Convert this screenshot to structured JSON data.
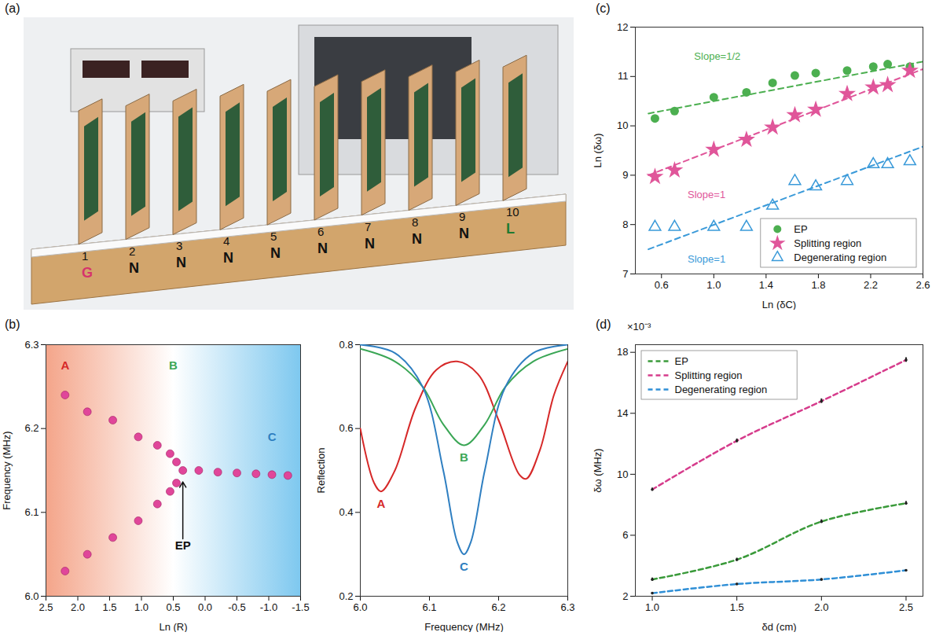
{
  "chart_data": [
    {
      "panel": "(a)",
      "type": "diagram",
      "boards": [
        {
          "number": "1",
          "label": "G",
          "color": "#d6336c"
        },
        {
          "number": "2",
          "label": "N",
          "color": "#111111"
        },
        {
          "number": "3",
          "label": "N",
          "color": "#111111"
        },
        {
          "number": "4",
          "label": "N",
          "color": "#111111"
        },
        {
          "number": "5",
          "label": "N",
          "color": "#111111"
        },
        {
          "number": "6",
          "label": "N",
          "color": "#111111"
        },
        {
          "number": "7",
          "label": "N",
          "color": "#111111"
        },
        {
          "number": "8",
          "label": "N",
          "color": "#111111"
        },
        {
          "number": "9",
          "label": "N",
          "color": "#111111"
        },
        {
          "number": "10",
          "label": "L",
          "color": "#1f7a30"
        }
      ]
    },
    {
      "panel": "(b)",
      "type": "scatter",
      "x_label": "Ln (R)",
      "y_label": "Frequency (MHz)",
      "xlim": [
        2.5,
        -1.5
      ],
      "xticks": [
        2.5,
        {
          "value": 2,
          "label": "2.0"
        },
        1.5,
        {
          "value": 1,
          "label": "1.0"
        },
        0.5,
        {
          "value": 0,
          "label": "0.0"
        },
        -0.5,
        {
          "value": -1,
          "label": "-1.0"
        },
        -1.5
      ],
      "ylim": [
        6.0,
        6.3
      ],
      "yticks": [
        {
          "value": 6,
          "label": "6.0"
        },
        6.1,
        6.2,
        6.3
      ],
      "color": "#e0469a",
      "x": [
        2.2,
        2.2,
        1.85,
        1.85,
        1.45,
        1.45,
        1.05,
        1.05,
        0.75,
        0.75,
        0.55,
        0.55,
        0.45,
        0.45,
        0.35,
        0.1,
        -0.2,
        -0.5,
        -0.8,
        -1.05,
        -1.3
      ],
      "y": [
        6.03,
        6.24,
        6.05,
        6.22,
        6.07,
        6.21,
        6.09,
        6.19,
        6.11,
        6.18,
        6.125,
        6.17,
        6.135,
        6.16,
        6.15,
        6.15,
        6.148,
        6.147,
        6.146,
        6.145,
        6.144
      ],
      "annotations": [
        {
          "text": "A",
          "x": 2.2,
          "y": 6.275,
          "color": "#d62828"
        },
        {
          "text": "B",
          "x": 0.5,
          "y": 6.275,
          "color": "#3aa655"
        },
        {
          "text": "C",
          "x": -1.05,
          "y": 6.19,
          "color": "#2f7fc1"
        },
        {
          "text": "EP",
          "x": 0.35,
          "y": 6.06,
          "color": "#111111",
          "arrow_to": [
            0.35,
            6.142
          ]
        }
      ]
    },
    {
      "type": "line",
      "x_label": "Frequency (MHz)",
      "y_label": "Reflection",
      "xlim": [
        6.0,
        6.3
      ],
      "xticks": [
        {
          "value": 6,
          "label": "6.0"
        },
        6.1,
        6.2,
        6.3
      ],
      "ylim": [
        0.2,
        0.8
      ],
      "yticks": [
        0.2,
        0.4,
        0.6,
        0.8
      ],
      "series": [
        {
          "name": "A",
          "color": "#d62828",
          "x": [
            6.0,
            6.02,
            6.03,
            6.05,
            6.08,
            6.11,
            6.14,
            6.17,
            6.2,
            6.23,
            6.24,
            6.26,
            6.28,
            6.3
          ],
          "values": [
            0.6,
            0.47,
            0.45,
            0.5,
            0.65,
            0.74,
            0.76,
            0.73,
            0.62,
            0.49,
            0.48,
            0.55,
            0.68,
            0.76
          ]
        },
        {
          "name": "B",
          "color": "#3aa655",
          "x": [
            6.0,
            6.05,
            6.09,
            6.12,
            6.15,
            6.18,
            6.21,
            6.25,
            6.3
          ],
          "values": [
            0.79,
            0.76,
            0.7,
            0.61,
            0.56,
            0.61,
            0.7,
            0.76,
            0.79
          ]
        },
        {
          "name": "C",
          "color": "#2f7fc1",
          "x": [
            6.0,
            6.05,
            6.09,
            6.12,
            6.14,
            6.15,
            6.16,
            6.18,
            6.21,
            6.25,
            6.3
          ],
          "values": [
            0.8,
            0.78,
            0.7,
            0.5,
            0.33,
            0.3,
            0.33,
            0.5,
            0.7,
            0.78,
            0.8
          ]
        }
      ]
    },
    {
      "panel": "(c)",
      "type": "scatter",
      "x_label": "Ln (δC)",
      "y_label": "Ln (δω)",
      "xlim": [
        0.4,
        2.6
      ],
      "xticks": [
        0.6,
        {
          "value": 1,
          "label": "1.0"
        },
        1.4,
        1.8,
        2.2,
        2.6
      ],
      "ylim": [
        7,
        12
      ],
      "yticks": [
        7,
        8,
        9,
        10,
        11,
        12
      ],
      "legend": "lower right",
      "x": [
        0.55,
        0.7,
        1.0,
        1.25,
        1.45,
        1.62,
        1.78,
        2.02,
        2.22,
        2.33,
        2.5
      ],
      "series": [
        {
          "name": "EP",
          "color": "#4caf50",
          "marker": "circle",
          "values": [
            10.15,
            10.3,
            10.58,
            10.68,
            10.87,
            11.02,
            11.07,
            11.12,
            11.2,
            11.25,
            11.2
          ],
          "fit": {
            "x": [
              0.5,
              2.6
            ],
            "y": [
              10.25,
              11.3
            ]
          },
          "annotation": {
            "text": "Slope=1/2",
            "x": 0.85,
            "y": 11.4
          }
        },
        {
          "name": "Splitting region",
          "color": "#e0569a",
          "marker": "star",
          "values": [
            8.97,
            9.1,
            9.52,
            9.72,
            9.97,
            10.22,
            10.33,
            10.65,
            10.78,
            10.83,
            11.12
          ],
          "fit": {
            "x": [
              0.5,
              2.6
            ],
            "y": [
              9.0,
              11.15
            ]
          },
          "annotation": {
            "text": "Slope=1",
            "x": 0.8,
            "y": 8.6
          }
        },
        {
          "name": "Degenerating region",
          "color": "#3a9ad9",
          "marker": "open-triangle",
          "values": [
            7.95,
            7.95,
            7.95,
            7.95,
            8.38,
            8.88,
            8.77,
            8.88,
            9.22,
            9.22,
            9.28
          ],
          "fit": {
            "x": [
              0.5,
              2.6
            ],
            "y": [
              7.5,
              9.58
            ]
          },
          "annotation": {
            "text": "Slope=1",
            "x": 0.8,
            "y": 7.3
          }
        }
      ]
    },
    {
      "panel": "(d)",
      "type": "line",
      "x_label": "δd (cm)",
      "y_label": "δω (MHz)",
      "y_multiplier": "×10⁻³",
      "xlim": [
        0.9,
        2.6
      ],
      "xticks": [
        {
          "value": 1,
          "label": "1.0"
        },
        1.5,
        {
          "value": 2,
          "label": "2.0"
        },
        2.5
      ],
      "ylim": [
        2,
        18.5
      ],
      "yticks": [
        2,
        6,
        10,
        14,
        18
      ],
      "legend": "upper left",
      "x": [
        1.0,
        1.5,
        2.0,
        2.5
      ],
      "series": [
        {
          "name": "EP",
          "color": "#3a9a3a",
          "line_style": "dashed",
          "values": [
            3.1,
            4.4,
            6.9,
            8.1
          ],
          "errors": [
            0.1,
            0.1,
            0.12,
            0.12
          ]
        },
        {
          "name": "Splitting region",
          "color": "#d63c8c",
          "line_style": "dashed",
          "values": [
            9.0,
            12.2,
            14.8,
            17.5
          ],
          "errors": [
            0.1,
            0.12,
            0.15,
            0.15
          ]
        },
        {
          "name": "Degenerating region",
          "color": "#2f8fd6",
          "line_style": "dashed",
          "values": [
            2.2,
            2.8,
            3.1,
            3.7
          ],
          "errors": [
            0.05,
            0.05,
            0.05,
            0.05
          ]
        }
      ]
    }
  ]
}
